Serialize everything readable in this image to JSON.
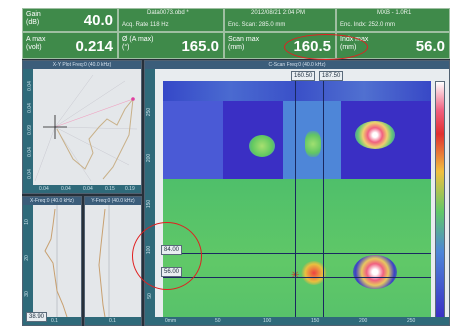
{
  "header": {
    "gain_label": "Gain\n(dB)",
    "gain_value": "40.0",
    "amax_label": "A max\n(volt)",
    "amax_value": "0.214",
    "file_name": "Data0073.obd *",
    "acq_rate": "Acq. Rate 118  Hz",
    "datetime": "2012/08/21  2:04 PM",
    "enc_scan": "Enc. Scan:  285.0 mm",
    "device": "MXB - 1.0R1",
    "enc_index": "Enc. Indx:  252.0 mm",
    "phi_label": "Ø (A max)\n(°)",
    "phi_value": "165.0",
    "scan_max_label": "Scan max\n(mm)",
    "scan_max_value": "160.5",
    "index_max_label": "Indx max\n(mm)",
    "index_max_value": "56.0"
  },
  "xy_panel": {
    "title": "X-Y Plot Freq:0 (40.0 kHz)",
    "y_ticks": [
      "0.04",
      "0.04",
      "0.09",
      "0.04",
      "0.04"
    ],
    "x_ticks": [
      "0.04",
      "0.04",
      "0.04",
      "0.15",
      "0.19"
    ]
  },
  "xfreq_panel": {
    "title": "X-Freq:0 (40.0 kHz)",
    "y_ticks": [
      "10",
      "20",
      "30"
    ],
    "x_tick": "0.1"
  },
  "yfreq_panel": {
    "title": "Y-Freq:0 (40.0 kHz)",
    "x_tick": "0.1"
  },
  "cscan_panel": {
    "title": "C-Scan  Freq:0 (40.0 kHz)",
    "cursor_top_a": "160.50",
    "cursor_top_b": "187.50",
    "cursor_left_a": "84.00",
    "cursor_left_b": "56.00",
    "y_ticks": [
      "250",
      "200",
      "150",
      "100",
      "50"
    ],
    "x_ticks": [
      "0mm",
      "50",
      "100",
      "150",
      "200",
      "250"
    ],
    "bottom_readout": "38.90"
  },
  "colors": {
    "header_bg": "#3f8a4a",
    "app_bg": "#27303a",
    "scan_background": "#3a2fc4",
    "callout": "#e02020"
  }
}
